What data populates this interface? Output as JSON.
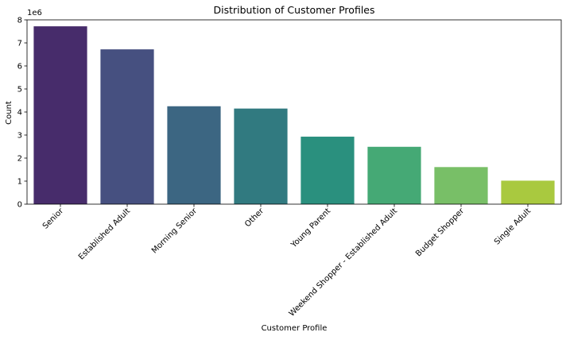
{
  "chart_data": {
    "type": "bar",
    "title": "Distribution of Customer Profiles",
    "xlabel": "Customer Profile",
    "ylabel": "Count",
    "y_scale_label": "1e6",
    "ylim": [
      0,
      8
    ],
    "yticks": [
      0,
      1,
      2,
      3,
      4,
      5,
      6,
      7,
      8
    ],
    "categories": [
      "Senior",
      "Established Adult",
      "Morning Senior",
      "Other",
      "Young Parent",
      "Weekend Shopper - Established Adult",
      "Budget Shopper",
      "Single Adult"
    ],
    "values": [
      7.72,
      6.72,
      4.25,
      4.15,
      2.93,
      2.49,
      1.61,
      1.02
    ],
    "colors": [
      "#472c6b",
      "#465080",
      "#3c6682",
      "#317a80",
      "#2a907e",
      "#45a975",
      "#78bf67",
      "#a9c93f"
    ],
    "grid": false,
    "legend": "none"
  }
}
